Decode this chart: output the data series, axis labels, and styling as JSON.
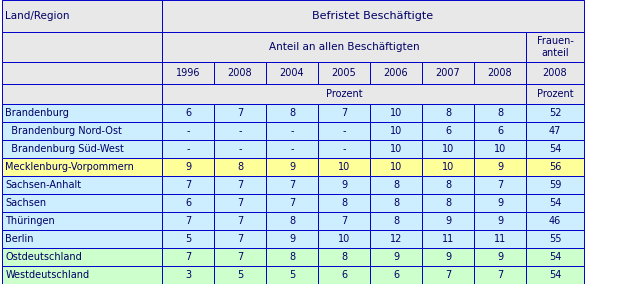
{
  "header1": "Befristet Beschäftigte",
  "header2": "Anteil an allen Beschäftigten",
  "header2b": "Frauen-\nanteil",
  "years": [
    "1996",
    "2008",
    "2004",
    "2005",
    "2006",
    "2007",
    "2008"
  ],
  "years_last": "2008",
  "prozent": "Prozent",
  "prozent_last": "Prozent",
  "rows": [
    {
      "name": "Brandenburg",
      "indent": 0,
      "values": [
        "6",
        "7",
        "8",
        "7",
        "10",
        "8",
        "8"
      ],
      "last": "52",
      "bg": "#cceeff"
    },
    {
      "name": "  Brandenburg Nord-Ost",
      "indent": 1,
      "values": [
        "-",
        "-",
        "-",
        "-",
        "10",
        "6",
        "6"
      ],
      "last": "47",
      "bg": "#cceeff"
    },
    {
      "name": "  Brandenburg Süd-West",
      "indent": 1,
      "values": [
        "-",
        "-",
        "-",
        "-",
        "10",
        "10",
        "10"
      ],
      "last": "54",
      "bg": "#cceeff"
    },
    {
      "name": "Mecklenburg-Vorpommern",
      "indent": 0,
      "values": [
        "9",
        "8",
        "9",
        "10",
        "10",
        "10",
        "9"
      ],
      "last": "56",
      "bg": "#ffff99"
    },
    {
      "name": "Sachsen-Anhalt",
      "indent": 0,
      "values": [
        "7",
        "7",
        "7",
        "9",
        "8",
        "8",
        "7"
      ],
      "last": "59",
      "bg": "#cceeff"
    },
    {
      "name": "Sachsen",
      "indent": 0,
      "values": [
        "6",
        "7",
        "7",
        "8",
        "8",
        "8",
        "9"
      ],
      "last": "54",
      "bg": "#cceeff"
    },
    {
      "name": "Thüringen",
      "indent": 0,
      "values": [
        "7",
        "7",
        "8",
        "7",
        "8",
        "9",
        "9"
      ],
      "last": "46",
      "bg": "#cceeff"
    },
    {
      "name": "Berlin",
      "indent": 0,
      "values": [
        "5",
        "7",
        "9",
        "10",
        "12",
        "11",
        "11"
      ],
      "last": "55",
      "bg": "#cceeff"
    },
    {
      "name": "Ostdeutschland",
      "indent": 0,
      "values": [
        "7",
        "7",
        "8",
        "8",
        "9",
        "9",
        "9"
      ],
      "last": "54",
      "bg": "#ccffcc"
    },
    {
      "name": "Westdeutschland",
      "indent": 0,
      "values": [
        "3",
        "5",
        "5",
        "6",
        "6",
        "7",
        "7"
      ],
      "last": "54",
      "bg": "#ccffcc"
    }
  ],
  "header_bg": "#e8e8e8",
  "border_color": "#0000cc",
  "text_color": "#000066",
  "white_bg": "#ffffff",
  "fig_w": 6.35,
  "fig_h": 2.84,
  "dpi": 100
}
